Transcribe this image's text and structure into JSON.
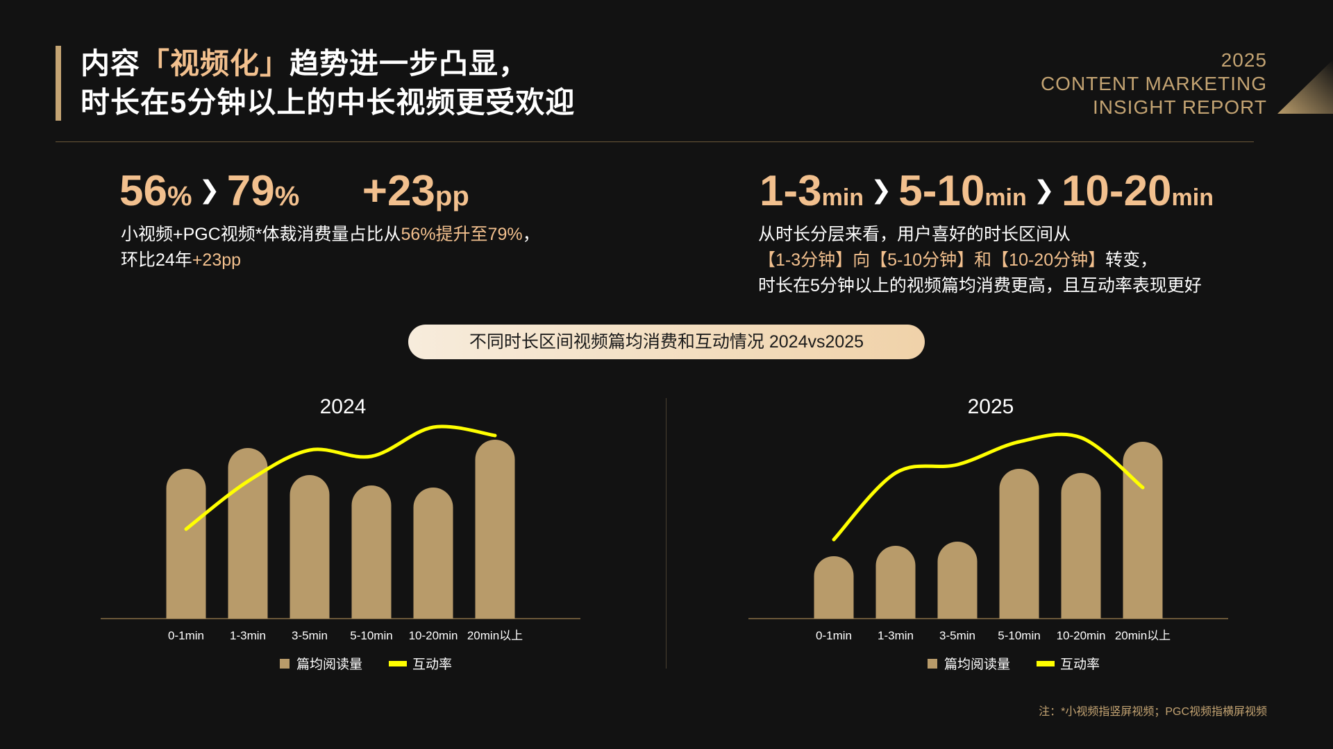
{
  "title": {
    "line1_pre": "内容",
    "line1_highlight": "「视频化」",
    "line1_post": "趋势进一步凸显，",
    "line2": "时长在5分钟以上的中长视频更受欢迎"
  },
  "report": {
    "year": "2025",
    "line1": "CONTENT MARKETING",
    "line2": "INSIGHT REPORT"
  },
  "stat_left": {
    "from_value": "56",
    "from_unit": "%",
    "to_value": "79",
    "to_unit": "%",
    "delta_value": "+23",
    "delta_unit": "pp",
    "arrow": "❯",
    "desc_pre": "小视频+PGC视频*体裁消费量占比从",
    "desc_hl": "56%提升至79%",
    "desc_mid": "，",
    "desc_line2_pre": "环比24年",
    "desc_line2_hl": "+23pp"
  },
  "stat_right": {
    "v1": "1-3",
    "u1": "min",
    "v2": "5-10",
    "u2": "min",
    "v3": "10-20",
    "u3": "min",
    "arrow": "❯",
    "line1": "从时长分层来看，用户喜好的时长区间从",
    "line2_hl": "【1-3分钟】向【5-10分钟】和【10-20分钟】",
    "line2_post": "转变，",
    "line3": "时长在5分钟以上的视频篇均消费更高，且互动率表现更好"
  },
  "pill_label": "不同时长区间视频篇均消费和互动情况   2024vs2025",
  "legend": {
    "bar": "篇均阅读量",
    "line": "互动率"
  },
  "colors": {
    "bar": "#b89b6a",
    "line": "#ffff00",
    "accent": "#f2c08e",
    "gold": "#c4a473"
  },
  "chart_data": [
    {
      "type": "bar",
      "title": "2024",
      "categories": [
        "0-1min",
        "1-3min",
        "3-5min",
        "5-10min",
        "10-20min",
        "20min以上"
      ],
      "series": [
        {
          "name": "篇均阅读量",
          "type": "bar",
          "values": [
            72,
            82,
            69,
            64,
            63,
            86
          ]
        },
        {
          "name": "互动率",
          "type": "line",
          "values": [
            43,
            66,
            81,
            78,
            92,
            88
          ]
        }
      ],
      "ylim": [
        0,
        100
      ]
    },
    {
      "type": "bar",
      "title": "2025",
      "categories": [
        "0-1min",
        "1-3min",
        "3-5min",
        "5-10min",
        "10-20min",
        "20min以上"
      ],
      "series": [
        {
          "name": "篇均阅读量",
          "type": "bar",
          "values": [
            30,
            35,
            37,
            72,
            70,
            85
          ]
        },
        {
          "name": "互动率",
          "type": "line",
          "values": [
            38,
            70,
            74,
            85,
            87,
            63
          ]
        }
      ],
      "ylim": [
        0,
        100
      ]
    }
  ],
  "note": "注：*小视频指竖屏视频；PGC视频指横屏视频"
}
